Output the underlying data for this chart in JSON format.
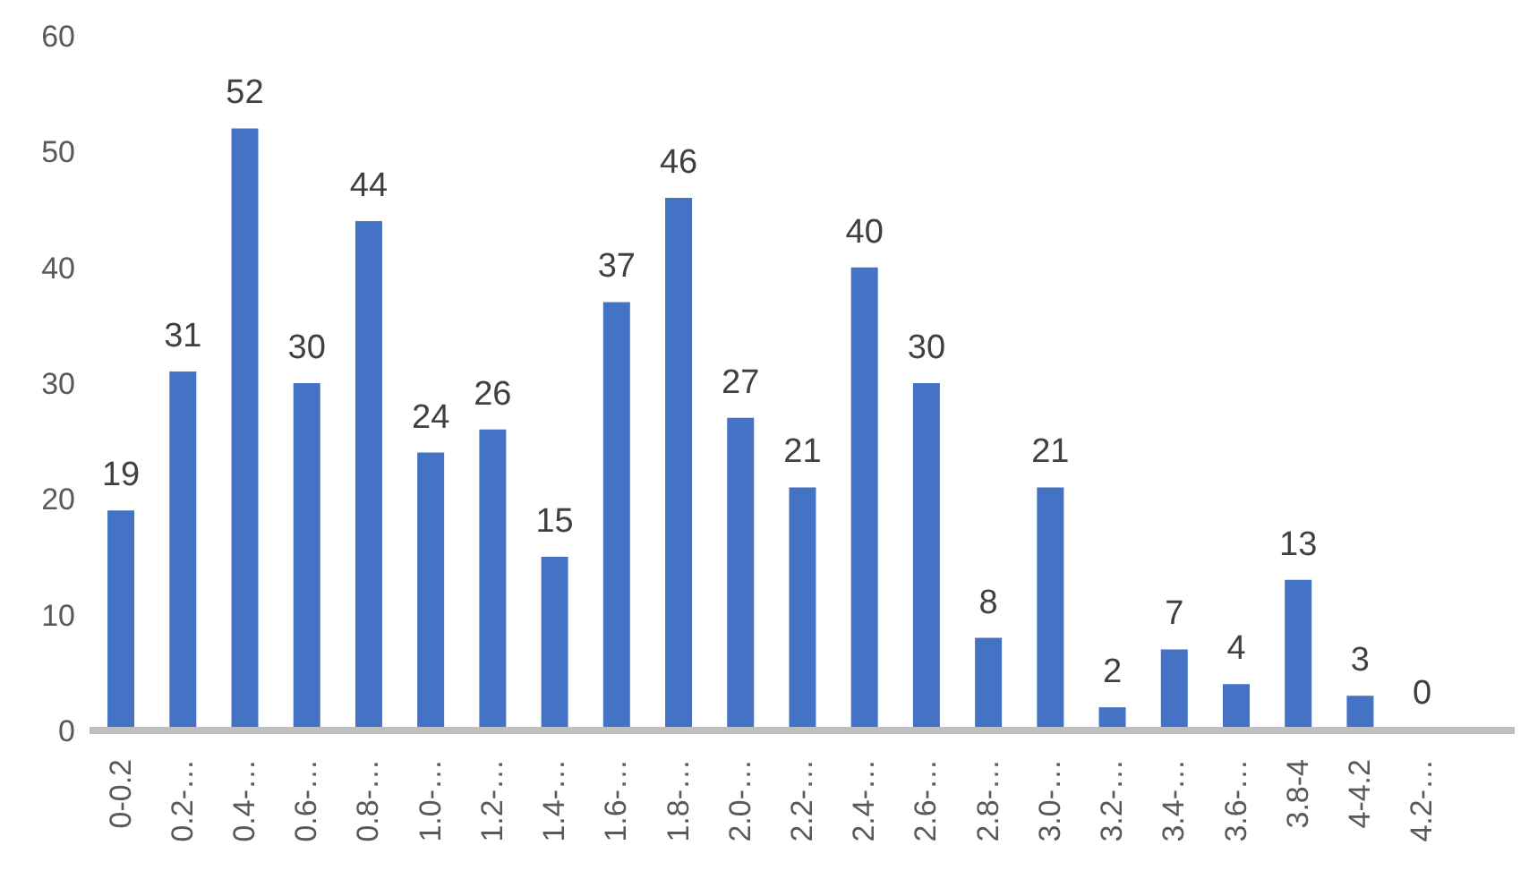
{
  "chart_data": {
    "type": "bar",
    "categories": [
      "0-0.2",
      "0.2-…",
      "0.4-…",
      "0.6-…",
      "0.8-…",
      "1.0-…",
      "1.2-…",
      "1.4-…",
      "1.6-…",
      "1.8-…",
      "2.0-…",
      "2.2-…",
      "2.4-…",
      "2.6-…",
      "2.8-…",
      "3.0-…",
      "3.2-…",
      "3.4-…",
      "3.6-…",
      "3.8-4",
      "4-4.2",
      "4.2-…",
      null
    ],
    "values": [
      19,
      31,
      52,
      30,
      44,
      24,
      26,
      15,
      37,
      46,
      27,
      21,
      40,
      30,
      8,
      21,
      2,
      7,
      4,
      13,
      3,
      0,
      null
    ],
    "color": "#4472c4",
    "ylim": [
      0,
      60
    ],
    "yticks": [
      0,
      10,
      20,
      30,
      40,
      50,
      60
    ],
    "grid": false,
    "data_labels": true
  }
}
